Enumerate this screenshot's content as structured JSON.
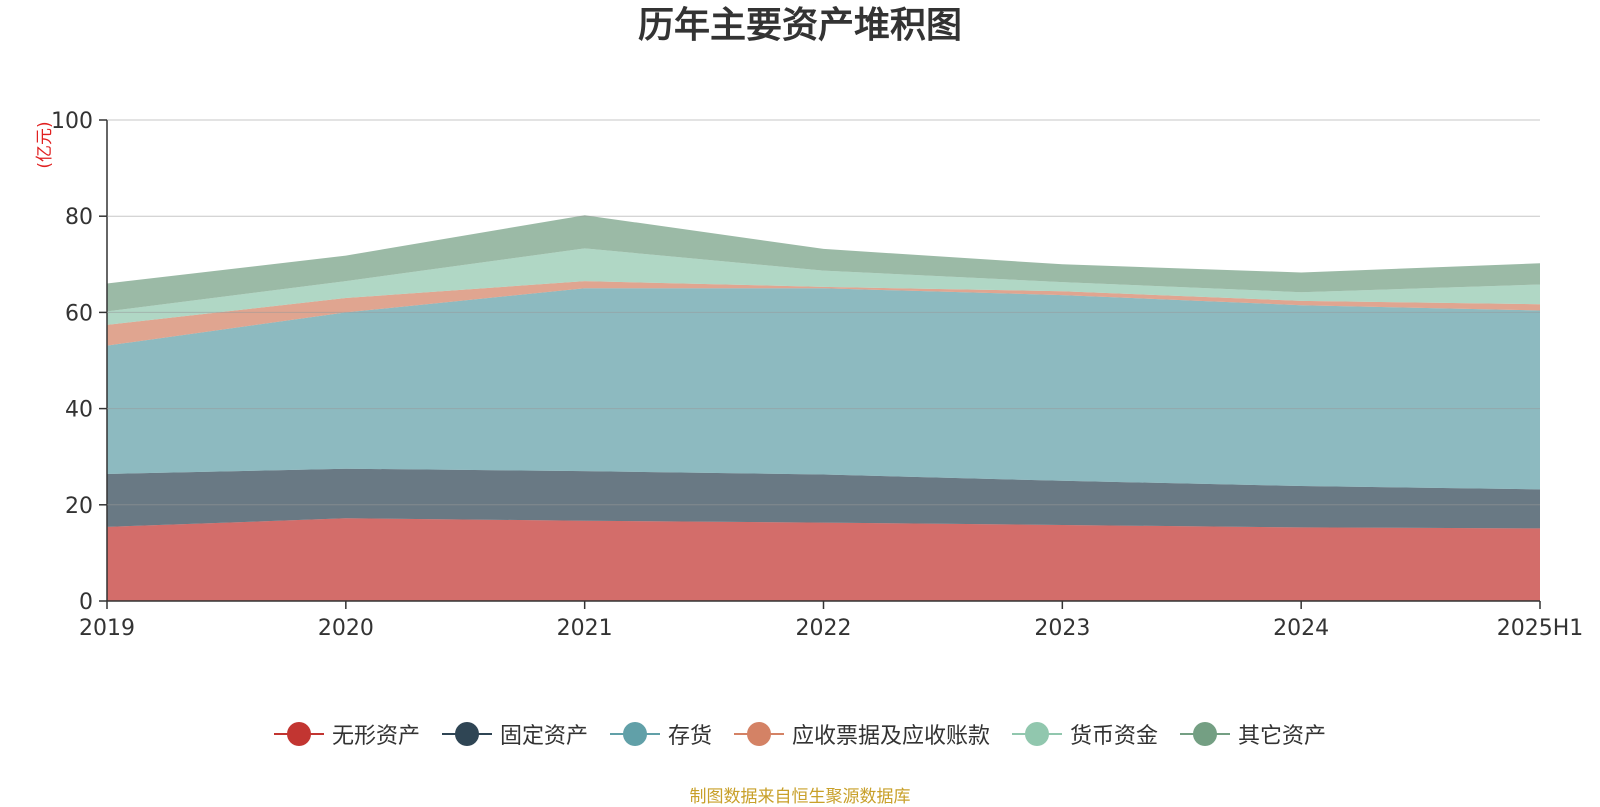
{
  "chart_data": {
    "type": "area",
    "stacked": true,
    "title": "历年主要资产堆积图",
    "ylabel": "(亿元)",
    "xlabel": "",
    "categories": [
      "2019",
      "2020",
      "2021",
      "2022",
      "2023",
      "2024",
      "2025H1"
    ],
    "ylim": [
      0,
      100
    ],
    "yticks": [
      0,
      20,
      40,
      60,
      80,
      100
    ],
    "grid": true,
    "legend_position": "bottom",
    "series": [
      {
        "name": "无形资产",
        "color": "#c23531",
        "values": [
          15.4,
          17.2,
          16.7,
          16.3,
          15.8,
          15.3,
          15.1
        ]
      },
      {
        "name": "固定资产",
        "color": "#2f4554",
        "values": [
          11.0,
          10.3,
          10.3,
          10.0,
          9.2,
          8.6,
          8.1
        ]
      },
      {
        "name": "存货",
        "color": "#61a0a8",
        "values": [
          26.7,
          32.5,
          38.0,
          38.7,
          38.6,
          37.6,
          37.2
        ]
      },
      {
        "name": "应收票据及应收账款",
        "color": "#d48265",
        "values": [
          4.3,
          3.0,
          1.5,
          0.3,
          0.8,
          0.9,
          1.3
        ]
      },
      {
        "name": "货币资金",
        "color": "#91c7ae",
        "values": [
          2.8,
          3.5,
          6.8,
          3.4,
          1.9,
          1.8,
          4.1
        ]
      },
      {
        "name": "其它资产",
        "color": "#749f83",
        "values": [
          5.8,
          5.3,
          6.9,
          4.5,
          3.7,
          4.1,
          4.4
        ]
      }
    ]
  },
  "source_note": "制图数据来自恒生聚源数据库"
}
